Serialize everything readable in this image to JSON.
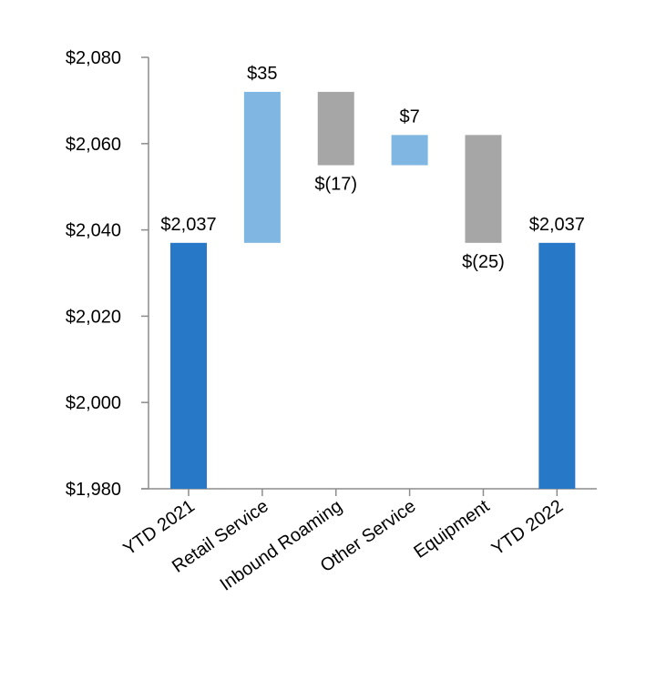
{
  "chart_data": {
    "type": "bar",
    "subtype": "waterfall",
    "title": "",
    "xlabel": "",
    "ylabel": "",
    "ylim": [
      1980,
      2080
    ],
    "yticks": [
      1980,
      2000,
      2020,
      2040,
      2060,
      2080
    ],
    "ytick_labels": [
      "$1,980",
      "$2,000",
      "$2,020",
      "$2,040",
      "$2,060",
      "$2,080"
    ],
    "grid": false,
    "legend": "none",
    "categories": [
      "YTD 2021",
      "Retail Service",
      "Inbound Roaming",
      "Other Service",
      "Equipment",
      "YTD 2022"
    ],
    "bars": [
      {
        "category": "YTD 2021",
        "kind": "total",
        "start": 1980,
        "end": 2037,
        "label": "$2,037",
        "color": "#2878c8"
      },
      {
        "category": "Retail Service",
        "kind": "increase",
        "start": 2037,
        "end": 2072,
        "label": "$35",
        "color": "#7fb6e2"
      },
      {
        "category": "Inbound Roaming",
        "kind": "decrease",
        "start": 2072,
        "end": 2055,
        "label": "$(17)",
        "color": "#a6a6a6"
      },
      {
        "category": "Other Service",
        "kind": "increase",
        "start": 2055,
        "end": 2062,
        "label": "$7",
        "color": "#7fb6e2"
      },
      {
        "category": "Equipment",
        "kind": "decrease",
        "start": 2062,
        "end": 2037,
        "label": "$(25)",
        "color": "#a6a6a6"
      },
      {
        "category": "YTD 2022",
        "kind": "total",
        "start": 1980,
        "end": 2037,
        "label": "$2,037",
        "color": "#2878c8"
      }
    ]
  }
}
